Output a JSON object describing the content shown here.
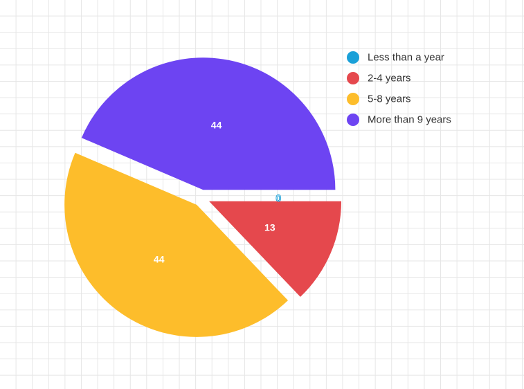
{
  "chart_data": {
    "type": "pie",
    "title": "",
    "categories": [
      "Less than a year",
      "2-4 years",
      "5-8 years",
      "More than 9 years"
    ],
    "values": [
      0,
      13,
      44,
      44
    ],
    "colors": [
      "#1aa0d8",
      "#e5484d",
      "#fdbd2b",
      "#6d44f2"
    ],
    "data_labels": [
      "0",
      "13",
      "44",
      "44"
    ],
    "exploded": true,
    "legend_position": "top-right",
    "grid": true
  }
}
